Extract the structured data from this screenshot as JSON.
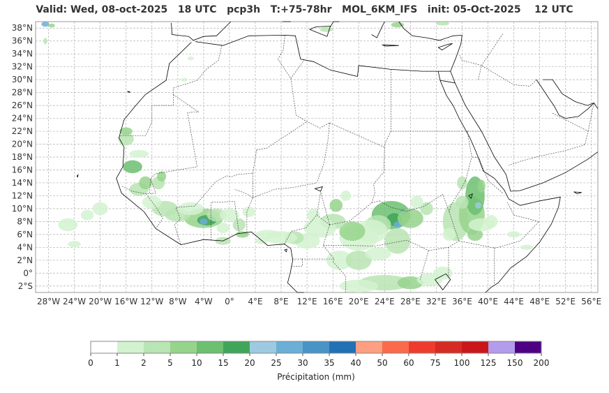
{
  "header": {
    "title": "Valid: Wed, 08-oct-2025   18 UTC   pcp3h   T:+75-78hr   MOL_6KM_IFS   init: 05-Oct-2025    12 UTC"
  },
  "map": {
    "region": "North Africa",
    "projection": "lat-lon",
    "lon_range": [
      -30,
      57
    ],
    "lat_range": [
      -3,
      39
    ],
    "gridlines": true,
    "lat_ticks": [
      "38°N",
      "36°N",
      "34°N",
      "32°N",
      "30°N",
      "28°N",
      "26°N",
      "24°N",
      "22°N",
      "20°N",
      "18°N",
      "16°N",
      "14°N",
      "12°N",
      "10°N",
      "8°N",
      "6°N",
      "4°N",
      "2°N",
      "0°",
      "2°S"
    ],
    "lon_ticks": [
      "28°W",
      "24°W",
      "20°W",
      "16°W",
      "12°W",
      "8°W",
      "4°W",
      "0°",
      "4°E",
      "8°E",
      "12°E",
      "16°E",
      "20°E",
      "24°E",
      "28°E",
      "32°E",
      "36°E",
      "40°E",
      "44°E",
      "48°E",
      "52°E",
      "56°E"
    ],
    "colors": {
      "grid": "#b0b0b0",
      "coast": "#000000",
      "border": "#333333"
    }
  },
  "colorbar": {
    "title": "Précipitation (mm)",
    "levels": [
      "0",
      "1",
      "2",
      "5",
      "10",
      "15",
      "20",
      "25",
      "30",
      "35",
      "40",
      "50",
      "60",
      "75",
      "100",
      "125",
      "150",
      "200"
    ],
    "colors": [
      "#ffffff",
      "#d3f2d0",
      "#b9e4b3",
      "#96d48c",
      "#6cc070",
      "#3fa55a",
      "#9ecae1",
      "#6baed6",
      "#4a93c6",
      "#2171b5",
      "#fc9f82",
      "#fb6a4a",
      "#ef3b2c",
      "#d62a24",
      "#c9161b",
      "#b39ceb",
      "#4d0084"
    ]
  }
}
